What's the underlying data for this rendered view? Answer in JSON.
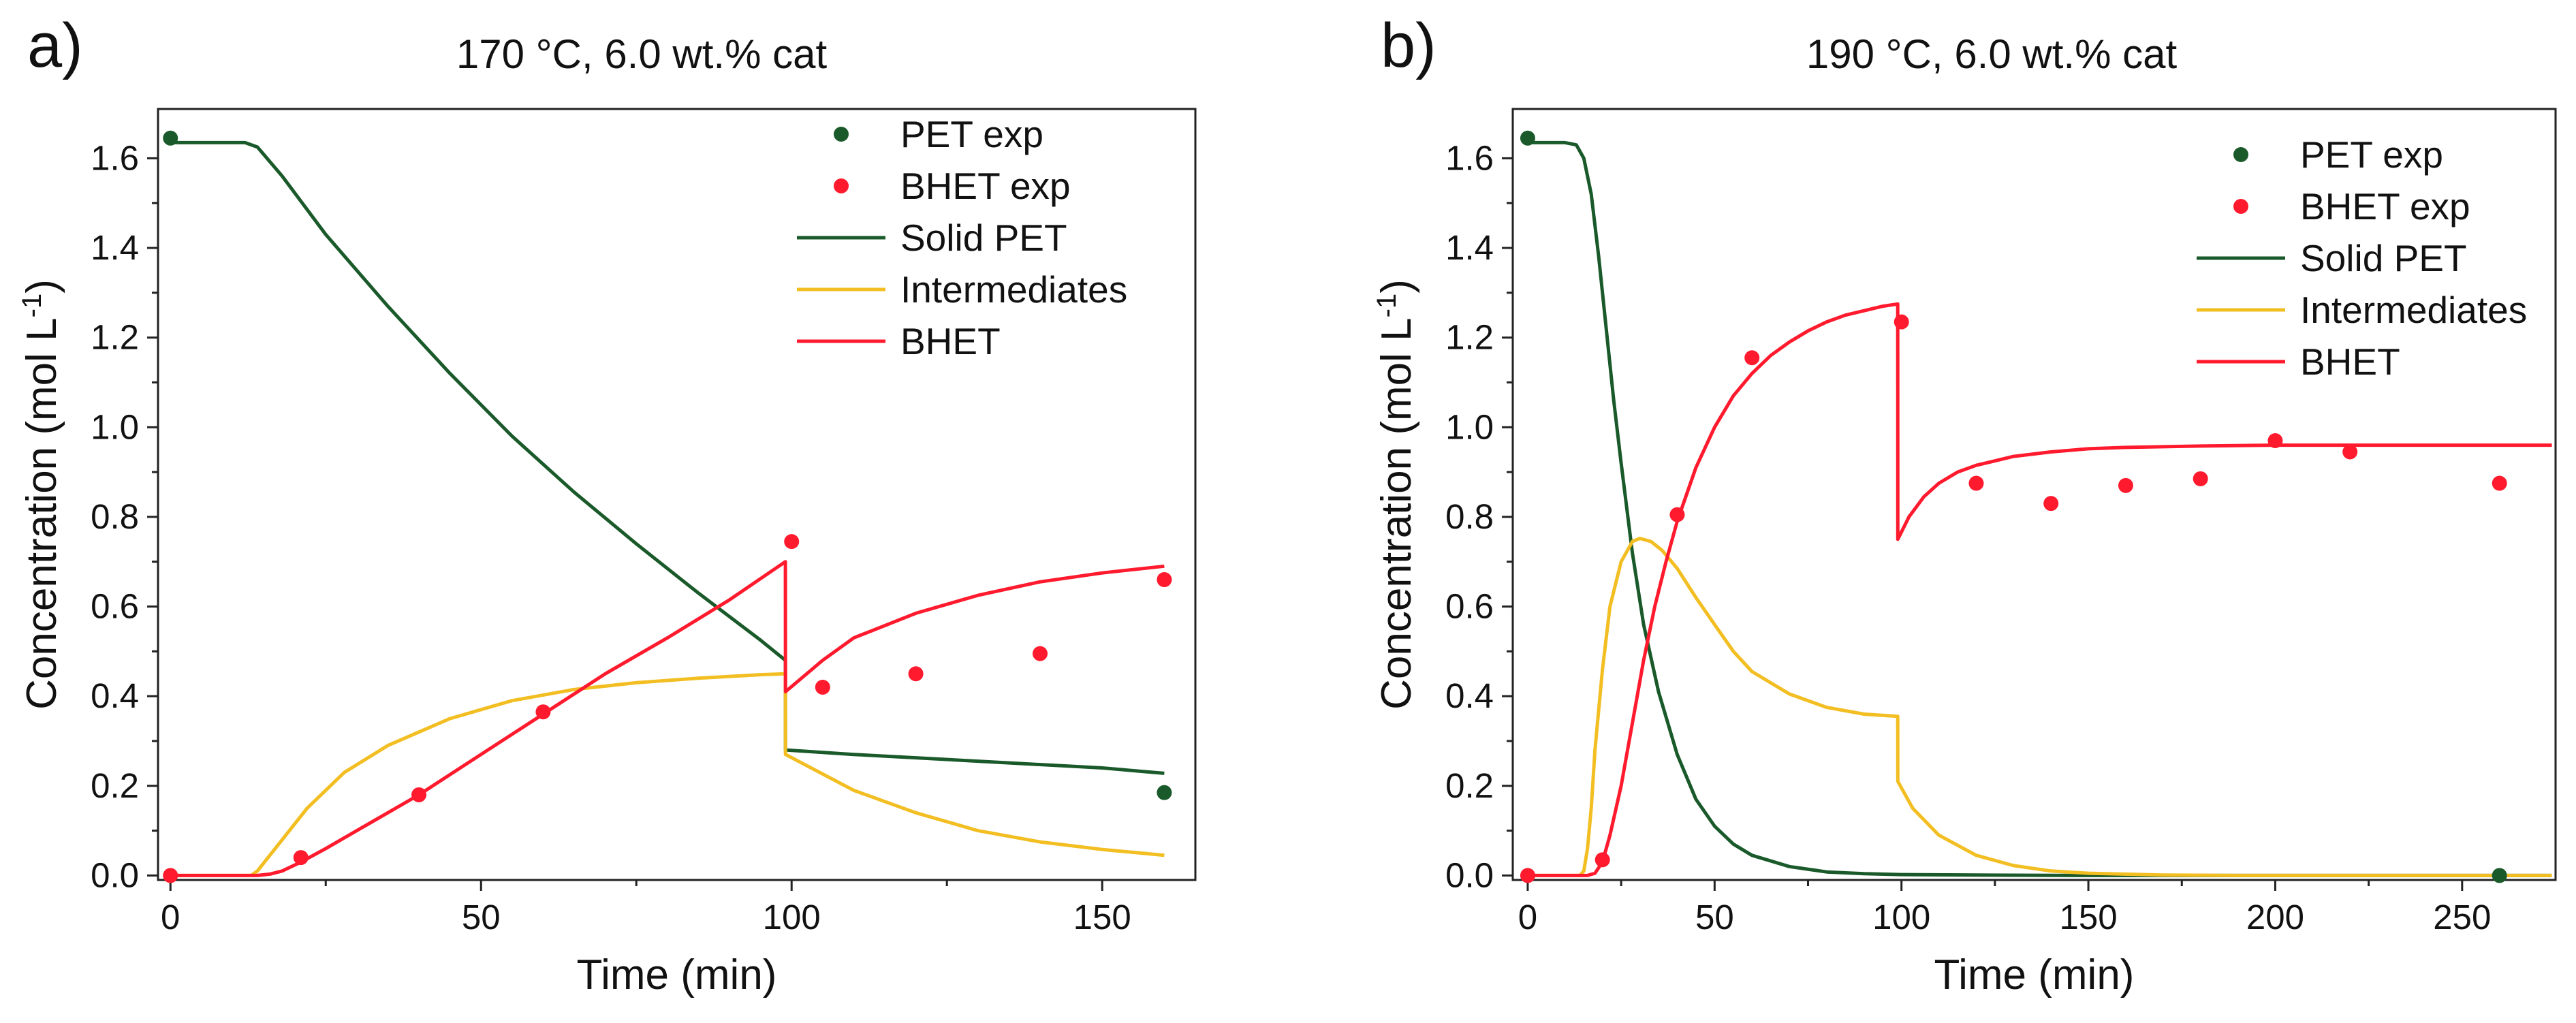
{
  "figure": {
    "panels": [
      {
        "label": "a)",
        "title": "170 °C, 6.0 wt.% cat"
      },
      {
        "label": "b)",
        "title": "190 °C, 6.0 wt.% cat"
      }
    ]
  },
  "colors": {
    "pet": "#1a5a2a",
    "bhet": "#ff1a2e",
    "intermediates": "#f2be22",
    "axis": "#222222"
  },
  "chart_data": [
    {
      "type": "line",
      "title": "170 °C, 6.0 wt.% cat",
      "xlabel": "Time (min)",
      "ylabel": "Concentration (mol L",
      "ylabel_sup": "-1",
      "ylabel_tail": ")",
      "xlim": [
        -2,
        165
      ],
      "ylim": [
        -0.01,
        1.71
      ],
      "xticks": [
        0,
        50,
        100,
        150
      ],
      "xtick_labels": [
        "0",
        "50",
        "100",
        "150"
      ],
      "yticks": [
        0.0,
        0.2,
        0.4,
        0.6,
        0.8,
        1.0,
        1.2,
        1.4,
        1.6
      ],
      "ytick_labels": [
        "0.0",
        "0.2",
        "0.4",
        "0.6",
        "0.8",
        "1.0",
        "1.2",
        "1.4",
        "1.6"
      ],
      "legend_position": "top-right",
      "legend": [
        "PET exp",
        "BHET exp",
        "Solid PET",
        "Intermediates",
        "BHET"
      ],
      "series": [
        {
          "name": "PET exp",
          "kind": "scatter",
          "color": "#1a5a2a",
          "x": [
            0,
            160
          ],
          "y": [
            1.645,
            0.185
          ]
        },
        {
          "name": "BHET exp",
          "kind": "scatter",
          "color": "#ff1a2e",
          "x": [
            0,
            21,
            40,
            60,
            100,
            105,
            120,
            140,
            160
          ],
          "y": [
            0.0,
            0.04,
            0.18,
            0.365,
            0.745,
            0.42,
            0.45,
            0.495,
            0.66
          ]
        },
        {
          "name": "Solid PET",
          "kind": "line",
          "color": "#1a5a2a",
          "x": [
            0,
            5,
            12,
            14,
            18,
            25,
            35,
            45,
            55,
            65,
            75,
            85,
            95,
            99,
            99.01,
            110,
            130,
            150,
            160
          ],
          "y": [
            1.635,
            1.635,
            1.635,
            1.625,
            1.56,
            1.43,
            1.27,
            1.12,
            0.98,
            0.855,
            0.74,
            0.63,
            0.525,
            0.48,
            0.28,
            0.27,
            0.255,
            0.24,
            0.228
          ]
        },
        {
          "name": "Intermediates",
          "kind": "line",
          "color": "#f2be22",
          "x": [
            0,
            10,
            13,
            14,
            18,
            22,
            28,
            35,
            45,
            55,
            65,
            75,
            85,
            95,
            99,
            99.01,
            110,
            120,
            130,
            140,
            150,
            160
          ],
          "y": [
            0,
            0,
            0,
            0.01,
            0.08,
            0.15,
            0.23,
            0.29,
            0.35,
            0.39,
            0.415,
            0.43,
            0.44,
            0.448,
            0.45,
            0.27,
            0.19,
            0.14,
            0.1,
            0.075,
            0.058,
            0.045
          ]
        },
        {
          "name": "BHET",
          "kind": "line",
          "color": "#ff1a2e",
          "x": [
            0,
            14,
            16,
            18,
            21,
            25,
            30,
            35,
            40,
            50,
            60,
            70,
            80,
            90,
            99,
            99.01,
            105,
            110,
            120,
            130,
            140,
            150,
            160
          ],
          "y": [
            0,
            0,
            0.003,
            0.01,
            0.03,
            0.06,
            0.1,
            0.14,
            0.18,
            0.27,
            0.36,
            0.45,
            0.53,
            0.615,
            0.7,
            0.41,
            0.48,
            0.53,
            0.585,
            0.625,
            0.655,
            0.675,
            0.69
          ]
        }
      ]
    },
    {
      "type": "line",
      "title": "190 °C, 6.0 wt.% cat",
      "xlabel": "Time (min)",
      "ylabel": "Concentration (mol L",
      "ylabel_sup": "-1",
      "ylabel_tail": ")",
      "xlim": [
        -4,
        275
      ],
      "ylim": [
        -0.01,
        1.71
      ],
      "xticks": [
        0,
        50,
        100,
        150,
        200,
        250
      ],
      "xtick_labels": [
        "0",
        "50",
        "100",
        "150",
        "200",
        "250"
      ],
      "yticks": [
        0.0,
        0.2,
        0.4,
        0.6,
        0.8,
        1.0,
        1.2,
        1.4,
        1.6
      ],
      "ytick_labels": [
        "0.0",
        "0.2",
        "0.4",
        "0.6",
        "0.8",
        "1.0",
        "1.2",
        "1.4",
        "1.6"
      ],
      "legend_position": "top-right",
      "legend": [
        "PET exp",
        "BHET exp",
        "Solid PET",
        "Intermediates",
        "BHET"
      ],
      "series": [
        {
          "name": "PET exp",
          "kind": "scatter",
          "color": "#1a5a2a",
          "x": [
            0,
            260
          ],
          "y": [
            1.645,
            0.0
          ]
        },
        {
          "name": "BHET exp",
          "kind": "scatter",
          "color": "#ff1a2e",
          "x": [
            0,
            20,
            40,
            60,
            100,
            120,
            140,
            160,
            180,
            200,
            220,
            260
          ],
          "y": [
            0.0,
            0.035,
            0.805,
            1.155,
            1.235,
            0.875,
            0.83,
            0.87,
            0.885,
            0.97,
            0.945,
            0.875
          ]
        },
        {
          "name": "Solid PET",
          "kind": "line",
          "color": "#1a5a2a",
          "x": [
            0,
            10,
            13,
            15,
            17,
            19,
            21,
            23,
            25,
            28,
            31,
            35,
            40,
            45,
            50,
            55,
            60,
            70,
            80,
            90,
            100,
            120,
            150,
            200,
            274
          ],
          "y": [
            1.635,
            1.635,
            1.63,
            1.6,
            1.52,
            1.38,
            1.22,
            1.06,
            0.92,
            0.72,
            0.56,
            0.41,
            0.27,
            0.17,
            0.11,
            0.07,
            0.045,
            0.02,
            0.008,
            0.004,
            0.002,
            0.001,
            0.0,
            0.0,
            0.0
          ]
        },
        {
          "name": "Intermediates",
          "kind": "line",
          "color": "#f2be22",
          "x": [
            0,
            14,
            15,
            16,
            17,
            18,
            20,
            22,
            25,
            28,
            30,
            33,
            36,
            40,
            45,
            50,
            55,
            60,
            70,
            80,
            90,
            99,
            99.01,
            103,
            110,
            120,
            130,
            140,
            150,
            170,
            190,
            274
          ],
          "y": [
            0,
            0,
            0.01,
            0.06,
            0.15,
            0.28,
            0.46,
            0.6,
            0.7,
            0.745,
            0.752,
            0.745,
            0.725,
            0.685,
            0.62,
            0.56,
            0.5,
            0.455,
            0.405,
            0.375,
            0.36,
            0.355,
            0.21,
            0.15,
            0.09,
            0.045,
            0.022,
            0.01,
            0.005,
            0.001,
            0.0,
            0.0
          ]
        },
        {
          "name": "BHET",
          "kind": "line",
          "color": "#ff1a2e",
          "x": [
            0,
            16,
            18,
            20,
            22,
            25,
            28,
            31,
            34,
            37,
            40,
            45,
            50,
            55,
            60,
            65,
            70,
            75,
            80,
            85,
            90,
            95,
            99,
            99.01,
            102,
            106,
            110,
            115,
            120,
            130,
            140,
            150,
            160,
            180,
            200,
            274
          ],
          "y": [
            0,
            0,
            0.005,
            0.03,
            0.09,
            0.2,
            0.34,
            0.48,
            0.6,
            0.7,
            0.79,
            0.91,
            1.0,
            1.07,
            1.12,
            1.16,
            1.19,
            1.215,
            1.235,
            1.25,
            1.26,
            1.27,
            1.275,
            0.75,
            0.8,
            0.845,
            0.875,
            0.9,
            0.915,
            0.935,
            0.945,
            0.952,
            0.955,
            0.958,
            0.96,
            0.96
          ]
        }
      ]
    }
  ]
}
